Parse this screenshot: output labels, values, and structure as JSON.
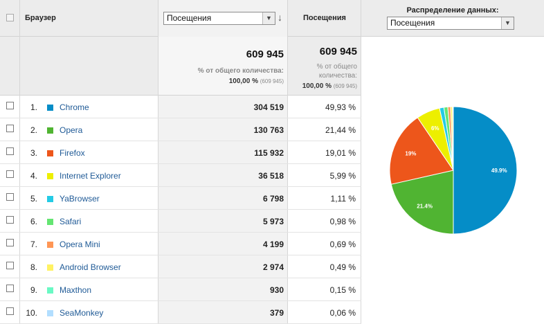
{
  "header": {
    "dimension_label": "Браузер",
    "metric_select_value": "Посещения",
    "metric_col_label": "Посещения",
    "distribution_label": "Распределение данных:",
    "distribution_select_value": "Посещения"
  },
  "summary": {
    "total1": "609 945",
    "share_label1": "% от общего количества:",
    "share_pct1": "100,00 %",
    "share_count1": "(609 945)",
    "total2": "609 945",
    "share_label2a": "% от общего",
    "share_label2b": "количества:",
    "share_pct2": "100,00 %",
    "share_count2": "(609 945)"
  },
  "rows": [
    {
      "rank": "1.",
      "name": "Chrome",
      "visits": "304 519",
      "pct": "49,93 %",
      "color": "#058dc7"
    },
    {
      "rank": "2.",
      "name": "Opera",
      "visits": "130 763",
      "pct": "21,44 %",
      "color": "#50b432"
    },
    {
      "rank": "3.",
      "name": "Firefox",
      "visits": "115 932",
      "pct": "19,01 %",
      "color": "#ed561b"
    },
    {
      "rank": "4.",
      "name": "Internet Explorer",
      "visits": "36 518",
      "pct": "5,99 %",
      "color": "#edef00"
    },
    {
      "rank": "5.",
      "name": "YaBrowser",
      "visits": "6 798",
      "pct": "1,11 %",
      "color": "#24cbe5"
    },
    {
      "rank": "6.",
      "name": "Safari",
      "visits": "5 973",
      "pct": "0,98 %",
      "color": "#64e572"
    },
    {
      "rank": "7.",
      "name": "Opera Mini",
      "visits": "4 199",
      "pct": "0,69 %",
      "color": "#ff9655"
    },
    {
      "rank": "8.",
      "name": "Android Browser",
      "visits": "2 974",
      "pct": "0,49 %",
      "color": "#fff263"
    },
    {
      "rank": "9.",
      "name": "Maxthon",
      "visits": "930",
      "pct": "0,15 %",
      "color": "#6af9c4"
    },
    {
      "rank": "10.",
      "name": "SeaMonkey",
      "visits": "379",
      "pct": "0,06 %",
      "color": "#b2deff"
    }
  ],
  "chart_data": {
    "type": "pie",
    "labels": [
      "Chrome",
      "Opera",
      "Firefox",
      "Internet Explorer",
      "YaBrowser",
      "Safari",
      "Opera Mini",
      "Android Browser",
      "Maxthon",
      "SeaMonkey"
    ],
    "values": [
      49.93,
      21.44,
      19.01,
      5.99,
      1.11,
      0.98,
      0.69,
      0.49,
      0.15,
      0.06
    ],
    "colors": [
      "#058dc7",
      "#50b432",
      "#ed561b",
      "#edef00",
      "#24cbe5",
      "#64e572",
      "#ff9655",
      "#fff263",
      "#6af9c4",
      "#b2deff"
    ],
    "slice_labels": [
      "49.9%",
      "21.4%",
      "19%",
      "6%",
      "",
      "",
      "",
      "",
      "",
      ""
    ]
  }
}
